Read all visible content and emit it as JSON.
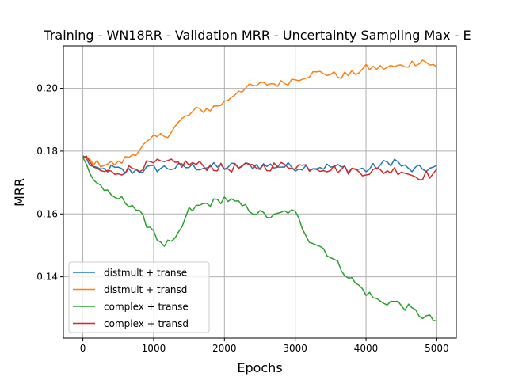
{
  "chart_data": {
    "type": "line",
    "title": "Training - WN18RR - Validation MRR - Uncertainty Sampling Max - E",
    "xlabel": "Epochs",
    "ylabel": "MRR",
    "xlim": [
      -275,
      5275
    ],
    "ylim": [
      0.1205,
      0.2135
    ],
    "xticks": [
      0,
      1000,
      2000,
      3000,
      4000,
      5000
    ],
    "xtick_labels": [
      "0",
      "1000",
      "2000",
      "3000",
      "4000",
      "5000"
    ],
    "yticks": [
      0.14,
      0.16,
      0.18,
      0.2
    ],
    "ytick_labels": [
      "0.14",
      "0.16",
      "0.18",
      "0.20"
    ],
    "grid": true,
    "legend_position": "lower-left",
    "x_step": 50,
    "series": [
      {
        "name": "distmult + transe",
        "color": "#1f77b4",
        "keypoints": [
          [
            0,
            0.1785
          ],
          [
            200,
            0.1735
          ],
          [
            400,
            0.1745
          ],
          [
            600,
            0.1735
          ],
          [
            1000,
            0.1745
          ],
          [
            1500,
            0.175
          ],
          [
            2000,
            0.175
          ],
          [
            2500,
            0.1755
          ],
          [
            3000,
            0.175
          ],
          [
            3500,
            0.175
          ],
          [
            4000,
            0.174
          ],
          [
            4400,
            0.177
          ],
          [
            4600,
            0.174
          ],
          [
            5000,
            0.1745
          ]
        ],
        "noise": 0.0014
      },
      {
        "name": "distmult + transd",
        "color": "#ff7f0e",
        "keypoints": [
          [
            0,
            0.178
          ],
          [
            200,
            0.176
          ],
          [
            500,
            0.176
          ],
          [
            700,
            0.179
          ],
          [
            1000,
            0.184
          ],
          [
            1200,
            0.1855
          ],
          [
            1400,
            0.19
          ],
          [
            1600,
            0.193
          ],
          [
            1800,
            0.1935
          ],
          [
            2000,
            0.1955
          ],
          [
            2200,
            0.1995
          ],
          [
            2400,
            0.2005
          ],
          [
            2600,
            0.2015
          ],
          [
            2800,
            0.2015
          ],
          [
            3000,
            0.203
          ],
          [
            3200,
            0.2045
          ],
          [
            3400,
            0.205
          ],
          [
            3600,
            0.204
          ],
          [
            3800,
            0.2045
          ],
          [
            4000,
            0.2065
          ],
          [
            4200,
            0.2065
          ],
          [
            4500,
            0.207
          ],
          [
            4800,
            0.209
          ],
          [
            5000,
            0.2065
          ]
        ],
        "noise": 0.0012
      },
      {
        "name": "complex + transe",
        "color": "#2ca02c",
        "keypoints": [
          [
            0,
            0.178
          ],
          [
            150,
            0.171
          ],
          [
            300,
            0.168
          ],
          [
            400,
            0.165
          ],
          [
            500,
            0.165
          ],
          [
            700,
            0.163
          ],
          [
            800,
            0.16
          ],
          [
            900,
            0.157
          ],
          [
            1000,
            0.155
          ],
          [
            1100,
            0.15
          ],
          [
            1300,
            0.151
          ],
          [
            1400,
            0.156
          ],
          [
            1500,
            0.161
          ],
          [
            1700,
            0.163
          ],
          [
            1900,
            0.164
          ],
          [
            2000,
            0.165
          ],
          [
            2200,
            0.163
          ],
          [
            2500,
            0.16
          ],
          [
            2700,
            0.159
          ],
          [
            2900,
            0.161
          ],
          [
            3000,
            0.16
          ],
          [
            3200,
            0.152
          ],
          [
            3400,
            0.149
          ],
          [
            3600,
            0.144
          ],
          [
            3800,
            0.139
          ],
          [
            4000,
            0.135
          ],
          [
            4200,
            0.132
          ],
          [
            4400,
            0.132
          ],
          [
            4600,
            0.13
          ],
          [
            4800,
            0.1275
          ],
          [
            5000,
            0.126
          ]
        ],
        "noise": 0.0013
      },
      {
        "name": "complex + transd",
        "color": "#d62728",
        "keypoints": [
          [
            0,
            0.178
          ],
          [
            200,
            0.174
          ],
          [
            400,
            0.173
          ],
          [
            700,
            0.1745
          ],
          [
            1000,
            0.176
          ],
          [
            1500,
            0.176
          ],
          [
            2000,
            0.1745
          ],
          [
            2500,
            0.175
          ],
          [
            3000,
            0.1755
          ],
          [
            3500,
            0.1745
          ],
          [
            4000,
            0.1735
          ],
          [
            4500,
            0.174
          ],
          [
            4700,
            0.172
          ],
          [
            5000,
            0.173
          ]
        ],
        "noise": 0.0015
      }
    ]
  }
}
